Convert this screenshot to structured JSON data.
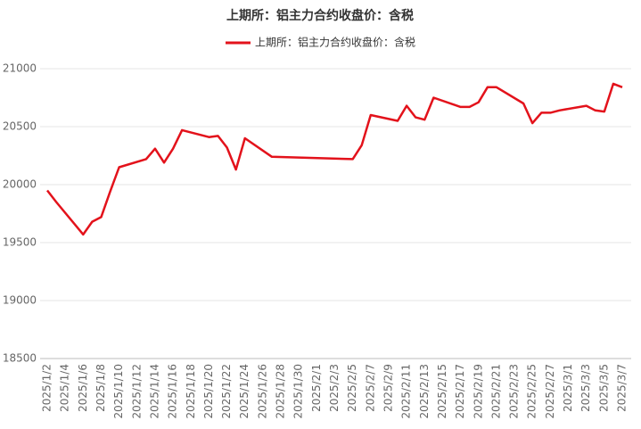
{
  "chart_data": {
    "type": "line",
    "title": "上期所：铝主力合约收盘价：含税",
    "categories": [
      "2025/1/2",
      null,
      "2025/1/4",
      null,
      "2025/1/6",
      null,
      "2025/1/8",
      null,
      "2025/1/10",
      null,
      "2025/1/12",
      null,
      "2025/1/14",
      null,
      "2025/1/16",
      null,
      "2025/1/18",
      null,
      "2025/1/20",
      null,
      "2025/1/22",
      null,
      "2025/1/24",
      null,
      "2025/1/26",
      null,
      "2025/1/28",
      null,
      "2025/1/30",
      null,
      "2025/2/1",
      null,
      "2025/2/3",
      null,
      "2025/2/5",
      null,
      "2025/2/7",
      null,
      "2025/2/9",
      null,
      "2025/2/11",
      null,
      "2025/2/13",
      null,
      "2025/2/15",
      null,
      "2025/2/17",
      null,
      "2025/2/19",
      null,
      "2025/2/21",
      null,
      "2025/2/23",
      null,
      "2025/2/25",
      null,
      "2025/2/27",
      null,
      "2025/3/1",
      null,
      "2025/3/3",
      null,
      "2025/3/5",
      null,
      "2025/3/7"
    ],
    "series": [
      {
        "name": "上期所：铝主力合约收盘价：含税",
        "color": "#e3121b",
        "values": [
          19950,
          19850,
          null,
          null,
          19570,
          19680,
          19720,
          19940,
          20150,
          null,
          null,
          20220,
          20310,
          20190,
          20310,
          20470,
          null,
          null,
          20410,
          20420,
          20320,
          20130,
          20400,
          null,
          null,
          20240,
          null,
          null,
          null,
          null,
          null,
          null,
          null,
          null,
          20220,
          20340,
          20600,
          null,
          null,
          20550,
          20680,
          20580,
          20560,
          20750,
          null,
          null,
          20670,
          20670,
          20710,
          20840,
          20840,
          null,
          null,
          20700,
          20530,
          20620,
          20620,
          20640,
          null,
          null,
          20680,
          20640,
          20630,
          20870,
          20840
        ]
      }
    ],
    "ylim": [
      18500,
      21000
    ],
    "yticks": [
      18500,
      19000,
      19500,
      20000,
      20500,
      21000
    ],
    "grid": true,
    "connect_nulls": true,
    "legend": "top"
  }
}
